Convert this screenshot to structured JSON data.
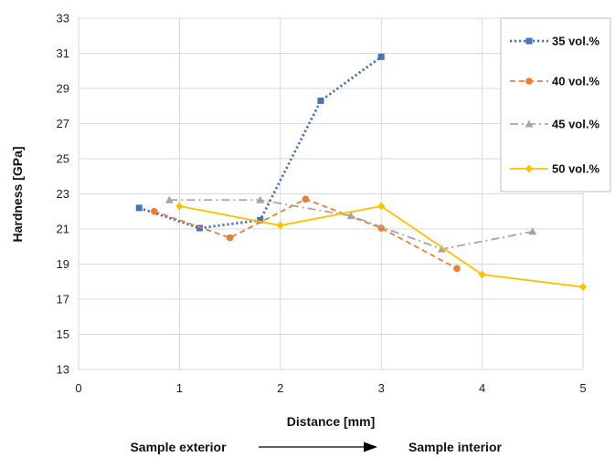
{
  "chart_data": {
    "type": "line",
    "xlabel": "Distance [mm]",
    "ylabel": "Hardness [GPa]",
    "xlim": [
      0,
      5
    ],
    "ylim": [
      13,
      33
    ],
    "x_ticks": [
      0,
      1,
      2,
      3,
      4,
      5
    ],
    "y_ticks": [
      13,
      15,
      17,
      19,
      21,
      23,
      25,
      27,
      29,
      31,
      33
    ],
    "grid": true,
    "legend_position": "top-right",
    "annotation": {
      "left": "Sample exterior",
      "right": "Sample interior"
    },
    "series": [
      {
        "name": "35 vol.%",
        "color": "#4472C4",
        "dash": "dotted",
        "marker": "square",
        "points": [
          [
            0.6,
            22.2
          ],
          [
            1.2,
            21.05
          ],
          [
            1.8,
            21.5
          ],
          [
            2.4,
            28.3
          ],
          [
            3.0,
            30.8
          ]
        ]
      },
      {
        "name": "40 vol.%",
        "color": "#ED7D31",
        "dash": "dashed",
        "marker": "circle",
        "points": [
          [
            0.75,
            22.0
          ],
          [
            1.5,
            20.5
          ],
          [
            2.25,
            22.7
          ],
          [
            3.0,
            21.05
          ],
          [
            3.75,
            18.75
          ]
        ]
      },
      {
        "name": "45 vol.%",
        "color": "#A5A5A5",
        "dash": "dashdot",
        "marker": "triangle",
        "points": [
          [
            0.9,
            22.65
          ],
          [
            1.8,
            22.65
          ],
          [
            2.7,
            21.75
          ],
          [
            3.6,
            19.85
          ],
          [
            4.5,
            20.85
          ]
        ]
      },
      {
        "name": "50 vol.%",
        "color": "#FFC000",
        "dash": "solid",
        "marker": "diamond",
        "points": [
          [
            1.0,
            22.3
          ],
          [
            2.0,
            21.2
          ],
          [
            3.0,
            22.3
          ],
          [
            4.0,
            18.4
          ],
          [
            5.0,
            17.7
          ]
        ]
      }
    ]
  }
}
